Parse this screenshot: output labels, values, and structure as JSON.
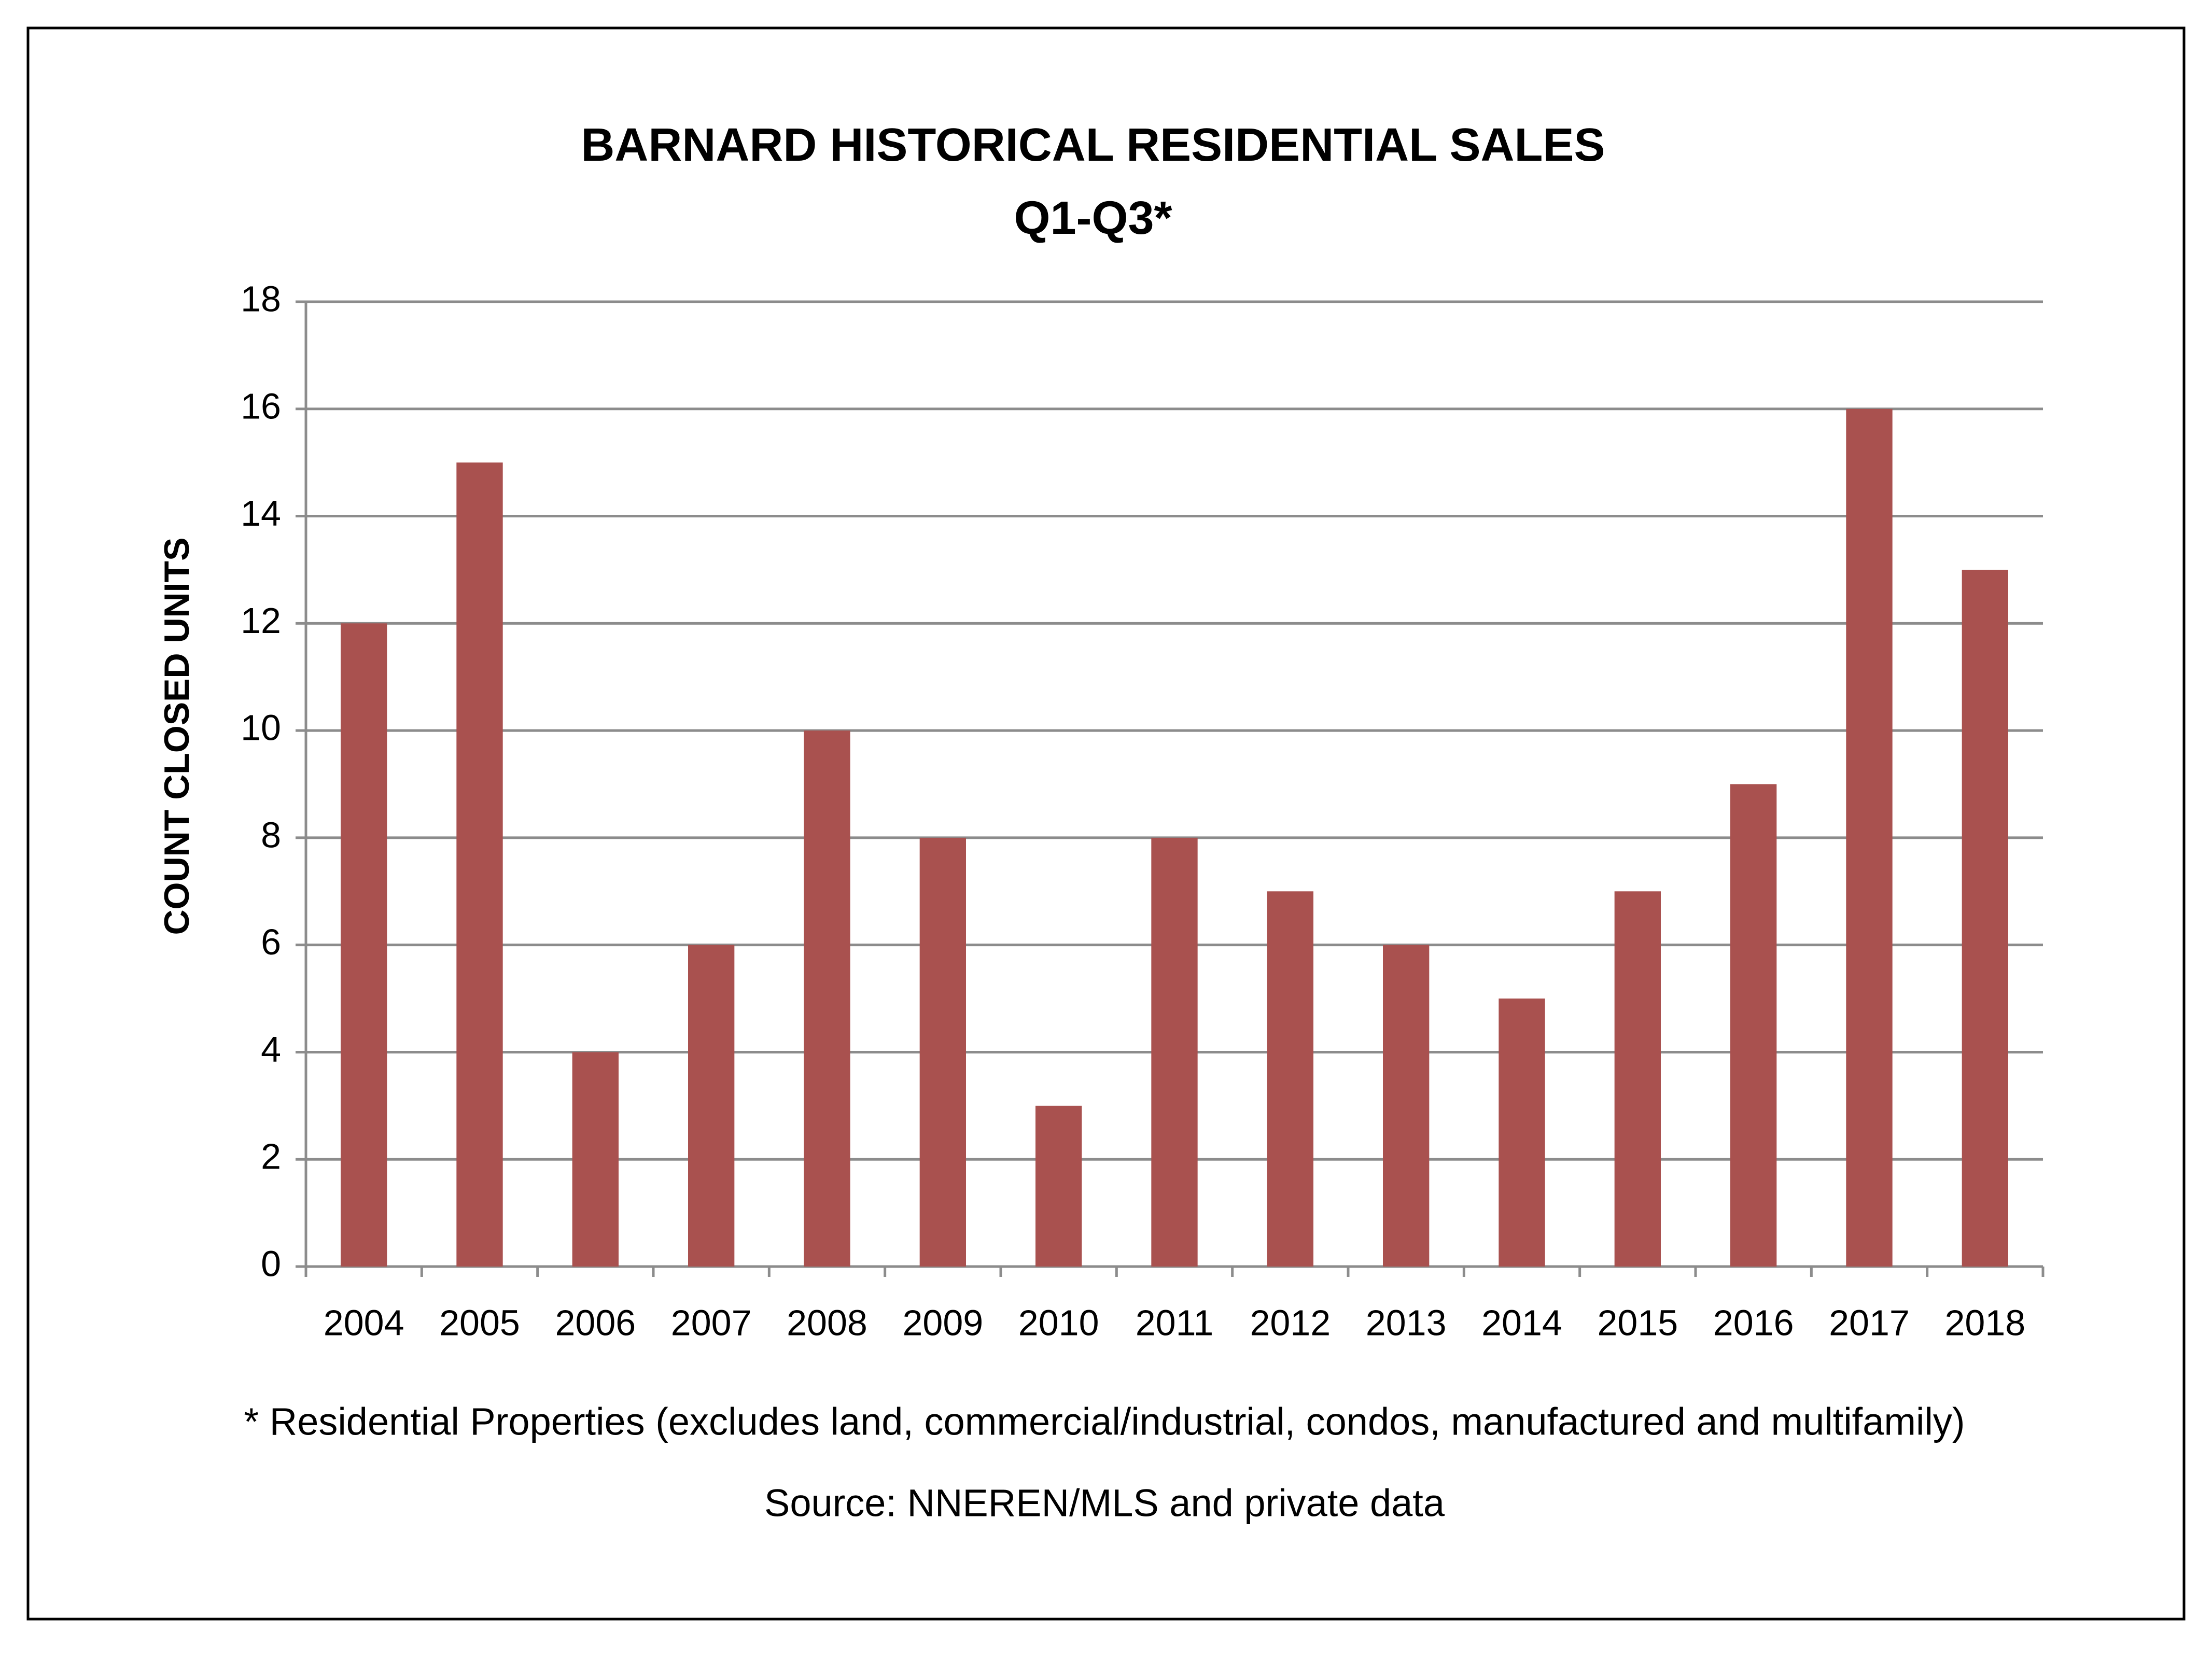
{
  "chart_data": {
    "type": "bar",
    "title": "BARNARD HISTORICAL RESIDENTIAL SALES",
    "subtitle": "Q1-Q3*",
    "y_label": "COUNT CLOSED UNITS",
    "categories": [
      "2004",
      "2005",
      "2006",
      "2007",
      "2008",
      "2009",
      "2010",
      "2011",
      "2012",
      "2013",
      "2014",
      "2015",
      "2016",
      "2017",
      "2018"
    ],
    "values": [
      12,
      15,
      4,
      6,
      10,
      8,
      3,
      8,
      7,
      6,
      5,
      7,
      9,
      16,
      13
    ],
    "color": "#a9514f",
    "ylim": [
      0,
      18
    ],
    "yticks": [
      0,
      2,
      4,
      6,
      8,
      10,
      12,
      14,
      16,
      18
    ],
    "grid": true,
    "note": "* Residential Properties (excludes land, commercial/industrial, condos, manufactured and multifamily)",
    "source": "Source: NNEREN/MLS and private data"
  }
}
